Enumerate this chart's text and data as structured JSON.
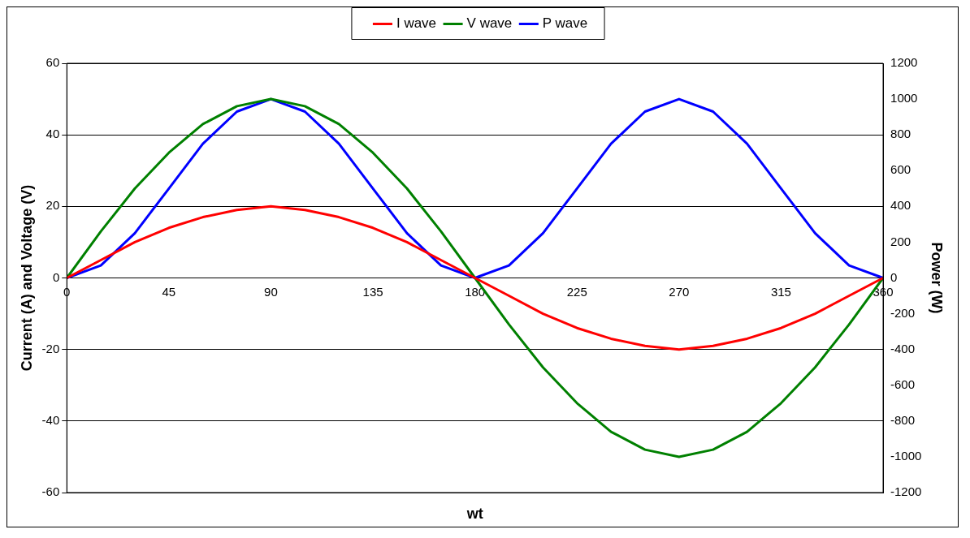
{
  "chart_data": {
    "type": "line",
    "xlabel": "wt",
    "ylabel": "Current (A) and Voltage (V)",
    "y2label": "Power (W)",
    "x": [
      0,
      15,
      30,
      45,
      60,
      75,
      90,
      105,
      120,
      135,
      150,
      165,
      180,
      195,
      210,
      225,
      240,
      255,
      270,
      285,
      300,
      315,
      330,
      345,
      360
    ],
    "series": [
      {
        "name": "I wave",
        "color": "#ff0000",
        "values": [
          0,
          5,
          10,
          14,
          17,
          19,
          20,
          19,
          17,
          14,
          10,
          5,
          0,
          -5,
          -10,
          -14,
          -17,
          -19,
          -20,
          -19,
          -17,
          -14,
          -10,
          -5,
          0
        ]
      },
      {
        "name": "V wave",
        "color": "#008000",
        "values": [
          0,
          13,
          25,
          35,
          43,
          48,
          50,
          48,
          43,
          35,
          25,
          13,
          0,
          -13,
          -25,
          -35,
          -43,
          -48,
          -50,
          -48,
          -43,
          -35,
          -25,
          -13,
          0
        ]
      },
      {
        "name": "P wave",
        "color": "#0000ff",
        "axis": "y2",
        "values": [
          0,
          70,
          250,
          500,
          750,
          930,
          1000,
          930,
          750,
          500,
          250,
          70,
          0,
          70,
          250,
          500,
          750,
          930,
          1000,
          930,
          750,
          500,
          250,
          70,
          0
        ]
      }
    ],
    "xlim": [
      0,
      360
    ],
    "xticks": [
      0,
      45,
      90,
      135,
      180,
      225,
      270,
      315,
      360
    ],
    "ylim": [
      -60,
      60
    ],
    "yticks": [
      -60,
      -40,
      -20,
      0,
      20,
      40,
      60
    ],
    "y2lim": [
      -1200,
      1200
    ],
    "y2ticks": [
      -1200,
      -1000,
      -800,
      -600,
      -400,
      -200,
      0,
      200,
      400,
      600,
      800,
      1000,
      1200
    ],
    "grid": "y",
    "legend": "top",
    "marker": "none",
    "line_style": "solid"
  }
}
